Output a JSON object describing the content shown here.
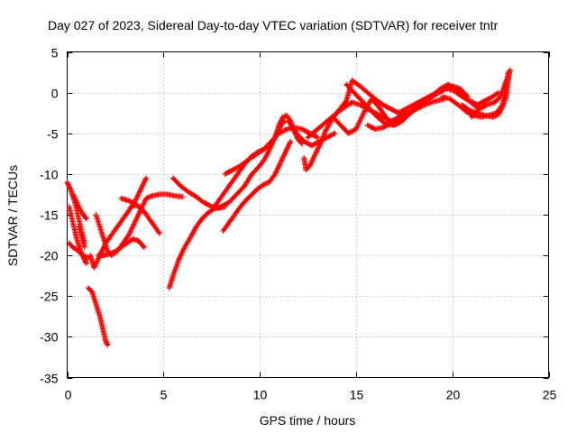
{
  "chart_data": {
    "type": "scatter",
    "title": "Day 027 of 2023, Sidereal Day-to-day VTEC variation (SDTVAR) for receiver tntr",
    "xlabel": "GPS time / hours",
    "ylabel": "SDTVAR / TECUs",
    "xlim": [
      0,
      25
    ],
    "ylim": [
      -35,
      5
    ],
    "xticks": [
      0,
      5,
      10,
      15,
      20,
      25
    ],
    "yticks": [
      5,
      0,
      -5,
      -10,
      -15,
      -20,
      -25,
      -30,
      -35
    ],
    "grid": true,
    "marker": "+",
    "color": "#ff0000",
    "series": [
      {
        "points": [
          [
            0.0,
            -11.0
          ],
          [
            0.2,
            -12.0
          ],
          [
            0.4,
            -13.5
          ],
          [
            0.6,
            -15.5
          ],
          [
            0.8,
            -17.5
          ],
          [
            0.9,
            -18.5
          ]
        ]
      },
      {
        "points": [
          [
            0.1,
            -14.0
          ],
          [
            0.3,
            -16.0
          ],
          [
            0.5,
            -18.0
          ],
          [
            0.7,
            -19.5
          ],
          [
            0.9,
            -20.5
          ],
          [
            1.0,
            -21.0
          ]
        ]
      },
      {
        "points": [
          [
            0.1,
            -18.5
          ],
          [
            0.3,
            -19.0
          ],
          [
            0.6,
            -19.5
          ],
          [
            0.8,
            -20.0
          ],
          [
            1.1,
            -20.3
          ]
        ]
      },
      {
        "points": [
          [
            0.3,
            -12.5
          ],
          [
            0.5,
            -13.5
          ],
          [
            0.7,
            -14.5
          ],
          [
            0.9,
            -15.2
          ],
          [
            1.0,
            -15.5
          ]
        ]
      },
      {
        "points": [
          [
            0.6,
            -16.5
          ],
          [
            0.8,
            -18.0
          ],
          [
            0.9,
            -19.0
          ]
        ]
      },
      {
        "points": [
          [
            1.1,
            -24.0
          ],
          [
            1.3,
            -24.5
          ],
          [
            1.5,
            -26.0
          ],
          [
            1.7,
            -27.5
          ],
          [
            1.85,
            -29.0
          ],
          [
            2.0,
            -30.5
          ],
          [
            2.1,
            -31.0
          ]
        ]
      },
      {
        "points": [
          [
            1.2,
            -20.0
          ],
          [
            1.4,
            -21.5
          ],
          [
            1.6,
            -20.5
          ],
          [
            1.8,
            -19.5
          ],
          [
            2.0,
            -18.5
          ],
          [
            2.3,
            -17.5
          ],
          [
            2.6,
            -16.5
          ],
          [
            2.9,
            -15.5
          ],
          [
            3.2,
            -14.5
          ],
          [
            3.5,
            -13.5
          ],
          [
            3.8,
            -12.0
          ],
          [
            4.1,
            -10.5
          ]
        ]
      },
      {
        "points": [
          [
            1.5,
            -15.0
          ],
          [
            1.7,
            -16.5
          ],
          [
            1.9,
            -18.0
          ],
          [
            2.1,
            -19.5
          ],
          [
            2.3,
            -20.0
          ],
          [
            2.6,
            -19.5
          ],
          [
            2.9,
            -18.5
          ],
          [
            3.2,
            -17.5
          ],
          [
            3.5,
            -16.0
          ],
          [
            3.8,
            -14.5
          ],
          [
            4.1,
            -13.0
          ],
          [
            4.4,
            -12.7
          ],
          [
            4.8,
            -12.5
          ],
          [
            5.2,
            -12.5
          ],
          [
            5.6,
            -12.7
          ],
          [
            6.0,
            -12.8
          ]
        ]
      },
      {
        "points": [
          [
            1.6,
            -20.0
          ],
          [
            1.9,
            -20.0
          ],
          [
            2.2,
            -19.8
          ],
          [
            2.5,
            -19.5
          ],
          [
            2.8,
            -19.0
          ],
          [
            3.1,
            -18.5
          ],
          [
            3.4,
            -18.0
          ],
          [
            3.7,
            -18.2
          ],
          [
            4.0,
            -19.0
          ]
        ]
      },
      {
        "points": [
          [
            2.8,
            -13.0
          ],
          [
            3.1,
            -13.2
          ],
          [
            3.4,
            -13.5
          ],
          [
            3.7,
            -14.0
          ],
          [
            3.9,
            -14.5
          ]
        ]
      },
      {
        "points": [
          [
            3.3,
            -14.0
          ],
          [
            3.6,
            -13.8
          ],
          [
            3.9,
            -14.3
          ],
          [
            4.2,
            -15.3
          ],
          [
            4.5,
            -16.3
          ],
          [
            4.8,
            -17.3
          ]
        ]
      },
      {
        "points": [
          [
            5.3,
            -24.0
          ],
          [
            5.5,
            -22.5
          ],
          [
            5.8,
            -20.5
          ],
          [
            6.1,
            -19.0
          ],
          [
            6.4,
            -17.8
          ],
          [
            6.7,
            -16.5
          ],
          [
            7.0,
            -15.5
          ],
          [
            7.3,
            -14.8
          ],
          [
            7.6,
            -14.3
          ],
          [
            8.0,
            -14.0
          ],
          [
            8.4,
            -13.5
          ],
          [
            8.8,
            -12.5
          ],
          [
            9.2,
            -11.5
          ],
          [
            9.6,
            -10.0
          ],
          [
            10.0,
            -9.0
          ],
          [
            10.3,
            -8.0
          ],
          [
            10.5,
            -7.0
          ],
          [
            10.7,
            -6.0
          ],
          [
            10.9,
            -5.0
          ],
          [
            11.1,
            -4.0
          ],
          [
            11.3,
            -3.5
          ]
        ]
      },
      {
        "points": [
          [
            5.5,
            -10.5
          ],
          [
            5.9,
            -11.5
          ],
          [
            6.3,
            -12.2
          ],
          [
            6.7,
            -12.8
          ],
          [
            7.1,
            -13.5
          ],
          [
            7.5,
            -14.0
          ],
          [
            7.9,
            -14.2
          ],
          [
            8.2,
            -14.0
          ]
        ]
      },
      {
        "points": [
          [
            7.5,
            -14.5
          ],
          [
            7.8,
            -13.5
          ],
          [
            8.1,
            -12.5
          ],
          [
            8.4,
            -11.5
          ],
          [
            8.7,
            -10.5
          ],
          [
            9.0,
            -9.5
          ],
          [
            9.3,
            -8.5
          ],
          [
            9.6,
            -7.8
          ],
          [
            9.9,
            -7.3
          ],
          [
            10.2,
            -7.0
          ],
          [
            10.5,
            -6.5
          ]
        ]
      },
      {
        "points": [
          [
            8.2,
            -10.0
          ],
          [
            8.6,
            -9.5
          ],
          [
            9.0,
            -9.0
          ],
          [
            9.4,
            -8.3
          ],
          [
            9.8,
            -7.6
          ],
          [
            10.2,
            -7.0
          ],
          [
            10.6,
            -6.0
          ],
          [
            11.0,
            -5.0
          ],
          [
            11.4,
            -4.5
          ],
          [
            11.8,
            -4.3
          ],
          [
            12.2,
            -4.5
          ],
          [
            12.6,
            -5.0
          ],
          [
            13.0,
            -5.5
          ]
        ]
      },
      {
        "points": [
          [
            8.1,
            -17.0
          ],
          [
            8.4,
            -16.0
          ],
          [
            8.7,
            -15.0
          ],
          [
            9.0,
            -14.0
          ],
          [
            9.3,
            -13.2
          ],
          [
            9.6,
            -12.5
          ],
          [
            9.9,
            -11.8
          ],
          [
            10.2,
            -11.3
          ],
          [
            10.5,
            -11.0
          ],
          [
            10.8,
            -10.0
          ],
          [
            11.0,
            -9.0
          ],
          [
            11.2,
            -8.0
          ],
          [
            11.4,
            -7.0
          ],
          [
            11.6,
            -6.0
          ]
        ]
      },
      {
        "points": [
          [
            10.8,
            -5.5
          ],
          [
            11.0,
            -4.0
          ],
          [
            11.2,
            -3.0
          ],
          [
            11.4,
            -2.8
          ],
          [
            11.6,
            -3.5
          ],
          [
            11.8,
            -4.8
          ],
          [
            12.0,
            -5.8
          ],
          [
            12.2,
            -6.3
          ]
        ]
      },
      {
        "points": [
          [
            11.5,
            -3.5
          ],
          [
            11.9,
            -5.0
          ],
          [
            12.3,
            -6.0
          ],
          [
            12.7,
            -6.5
          ],
          [
            13.1,
            -6.0
          ],
          [
            13.5,
            -5.5
          ],
          [
            13.9,
            -5.0
          ]
        ]
      },
      {
        "points": [
          [
            12.3,
            -8.0
          ],
          [
            12.4,
            -9.5
          ],
          [
            12.6,
            -9.0
          ],
          [
            12.8,
            -8.0
          ],
          [
            13.0,
            -7.0
          ],
          [
            13.2,
            -6.0
          ],
          [
            13.4,
            -4.8
          ],
          [
            13.7,
            -3.5
          ],
          [
            14.0,
            -2.5
          ],
          [
            14.4,
            -1.8
          ],
          [
            14.8,
            -1.2
          ],
          [
            15.2,
            -1.5
          ],
          [
            15.6,
            -2.0
          ],
          [
            16.0,
            -2.5
          ],
          [
            16.4,
            -3.0
          ],
          [
            16.8,
            -3.5
          ],
          [
            17.2,
            -3.2
          ],
          [
            17.6,
            -2.7
          ],
          [
            18.0,
            -2.2
          ],
          [
            18.4,
            -1.7
          ],
          [
            18.8,
            -1.3
          ],
          [
            19.2,
            -1.0
          ],
          [
            19.6,
            -0.8
          ]
        ]
      },
      {
        "points": [
          [
            12.5,
            -5.5
          ],
          [
            13.0,
            -4.5
          ],
          [
            13.5,
            -3.5
          ],
          [
            14.0,
            -2.5
          ],
          [
            14.5,
            -1.0
          ],
          [
            14.8,
            1.5
          ],
          [
            15.2,
            0.8
          ],
          [
            15.6,
            0.0
          ],
          [
            16.0,
            -0.8
          ],
          [
            16.4,
            -1.5
          ],
          [
            16.8,
            -2.0
          ],
          [
            17.2,
            -2.5
          ],
          [
            17.6,
            -2.0
          ],
          [
            18.0,
            -1.5
          ],
          [
            18.4,
            -1.0
          ],
          [
            18.8,
            -0.5
          ],
          [
            19.2,
            0.0
          ],
          [
            19.6,
            0.5
          ],
          [
            20.0,
            0.8
          ],
          [
            20.4,
            0.5
          ],
          [
            20.8,
            -0.5
          ]
        ]
      },
      {
        "points": [
          [
            13.8,
            -3.0
          ],
          [
            14.2,
            -4.0
          ],
          [
            14.6,
            -5.0
          ],
          [
            15.0,
            -4.5
          ],
          [
            15.4,
            -2.5
          ],
          [
            15.8,
            -0.8
          ],
          [
            16.2,
            -1.8
          ],
          [
            16.6,
            -3.2
          ],
          [
            17.0,
            -4.0
          ],
          [
            17.4,
            -3.5
          ],
          [
            17.8,
            -2.5
          ],
          [
            18.2,
            -1.5
          ],
          [
            18.6,
            -0.8
          ],
          [
            19.0,
            -0.3
          ],
          [
            19.4,
            0.5
          ],
          [
            19.8,
            1.0
          ],
          [
            20.2,
            0.3
          ],
          [
            20.6,
            -0.5
          ],
          [
            21.0,
            -1.3
          ],
          [
            21.4,
            -2.0
          ]
        ]
      },
      {
        "points": [
          [
            14.5,
            1.0
          ],
          [
            14.9,
            0.0
          ],
          [
            15.3,
            -1.0
          ],
          [
            15.7,
            -2.0
          ],
          [
            16.1,
            -3.0
          ],
          [
            16.5,
            -3.8
          ],
          [
            16.9,
            -4.0
          ],
          [
            17.3,
            -3.5
          ],
          [
            17.7,
            -2.8
          ],
          [
            18.1,
            -2.0
          ],
          [
            18.5,
            -1.3
          ],
          [
            18.9,
            -0.6
          ],
          [
            19.3,
            0.0
          ],
          [
            19.7,
            0.5
          ],
          [
            20.1,
            0.2
          ],
          [
            20.5,
            -0.5
          ],
          [
            20.9,
            -1.0
          ],
          [
            21.3,
            -1.5
          ],
          [
            21.7,
            -1.0
          ],
          [
            22.1,
            -0.5
          ],
          [
            22.4,
            0.0
          ]
        ]
      },
      {
        "points": [
          [
            15.6,
            -4.0
          ],
          [
            16.0,
            -4.5
          ],
          [
            16.4,
            -4.3
          ],
          [
            16.8,
            -3.8
          ],
          [
            17.2,
            -3.0
          ],
          [
            17.6,
            -2.2
          ]
        ]
      },
      {
        "points": [
          [
            19.5,
            -0.5
          ],
          [
            19.9,
            -0.8
          ],
          [
            20.3,
            -1.5
          ],
          [
            20.7,
            -2.3
          ],
          [
            21.1,
            -2.8
          ],
          [
            21.5,
            -3.0
          ],
          [
            21.9,
            -2.8
          ],
          [
            22.3,
            -2.5
          ],
          [
            22.6,
            -1.5
          ],
          [
            22.8,
            0.5
          ],
          [
            22.9,
            2.5
          ]
        ]
      },
      {
        "points": [
          [
            20.5,
            -1.5
          ],
          [
            20.9,
            -2.2
          ],
          [
            21.3,
            -2.5
          ],
          [
            21.7,
            -2.8
          ],
          [
            22.1,
            -3.0
          ],
          [
            22.4,
            -2.7
          ],
          [
            22.6,
            -1.8
          ],
          [
            22.8,
            -0.5
          ],
          [
            22.9,
            1.5
          ],
          [
            23.0,
            2.8
          ]
        ]
      },
      {
        "points": [
          [
            21.0,
            -3.0
          ],
          [
            21.4,
            -2.0
          ],
          [
            21.8,
            -1.5
          ],
          [
            22.2,
            -1.2
          ],
          [
            22.5,
            -0.5
          ],
          [
            22.7,
            0.8
          ],
          [
            22.9,
            2.0
          ]
        ]
      }
    ]
  }
}
